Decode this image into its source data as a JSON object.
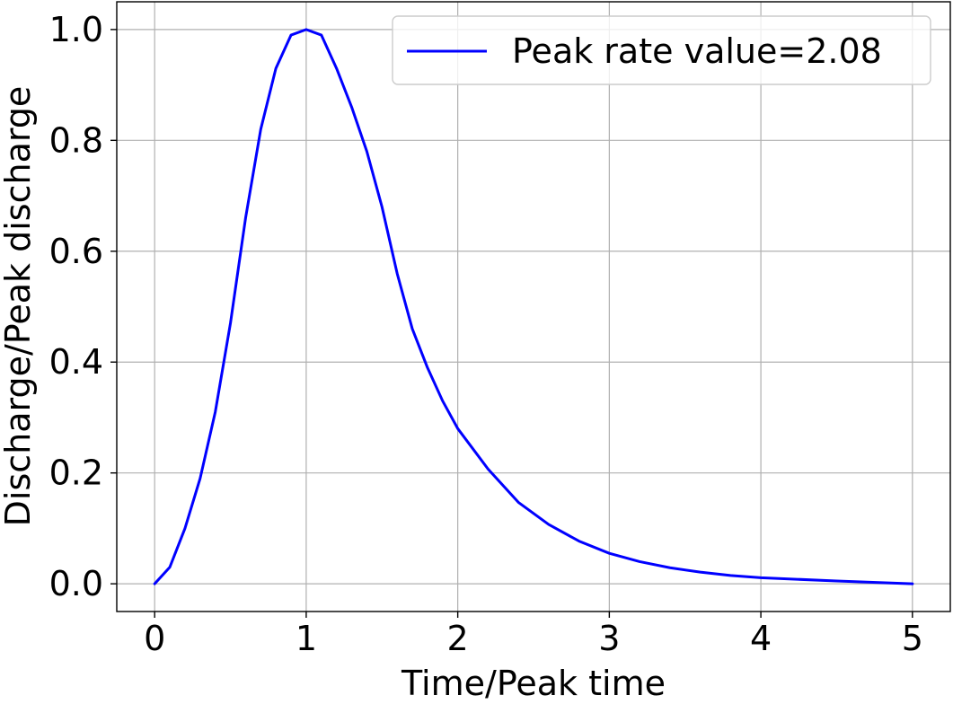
{
  "chart_data": {
    "type": "line",
    "title": "",
    "xlabel": "Time/Peak time",
    "ylabel": "Discharge/Peak discharge",
    "xlim": [
      -0.25,
      5.25
    ],
    "ylim": [
      -0.05,
      1.05
    ],
    "xticks": [
      0,
      1,
      2,
      3,
      4,
      5
    ],
    "xtick_labels": [
      "0",
      "1",
      "2",
      "3",
      "4",
      "5"
    ],
    "yticks": [
      0.0,
      0.2,
      0.4,
      0.6,
      0.8,
      1.0
    ],
    "ytick_labels": [
      "0.0",
      "0.2",
      "0.4",
      "0.6",
      "0.8",
      "1.0"
    ],
    "grid": true,
    "legend_position": "top-right",
    "series": [
      {
        "name": "Peak rate value=2.08",
        "color": "#0000ff",
        "x": [
          0.0,
          0.1,
          0.2,
          0.3,
          0.4,
          0.5,
          0.6,
          0.7,
          0.8,
          0.9,
          1.0,
          1.1,
          1.2,
          1.3,
          1.4,
          1.5,
          1.6,
          1.7,
          1.8,
          1.9,
          2.0,
          2.2,
          2.4,
          2.6,
          2.8,
          3.0,
          3.2,
          3.4,
          3.6,
          3.8,
          4.0,
          4.5,
          5.0
        ],
        "y": [
          0.0,
          0.03,
          0.1,
          0.19,
          0.31,
          0.47,
          0.66,
          0.82,
          0.93,
          0.99,
          1.0,
          0.99,
          0.93,
          0.86,
          0.78,
          0.68,
          0.56,
          0.46,
          0.39,
          0.33,
          0.28,
          0.207,
          0.147,
          0.107,
          0.077,
          0.055,
          0.04,
          0.029,
          0.021,
          0.015,
          0.011,
          0.005,
          0.0
        ]
      }
    ]
  }
}
